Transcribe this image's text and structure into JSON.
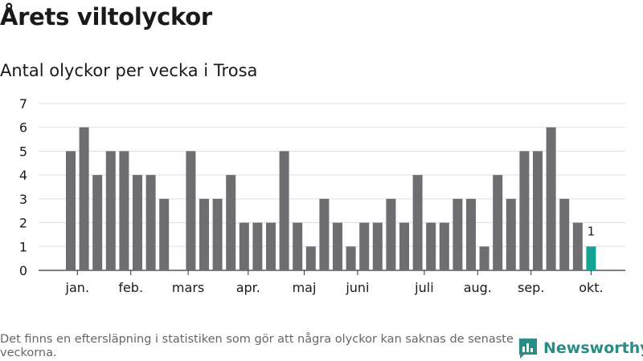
{
  "header": {
    "title": "Årets viltolyckor",
    "subtitle": "Antal olyckor per vecka i Trosa"
  },
  "footer": {
    "note": "Det finns en eftersläpning i statistiken som gör att några olyckor kan saknas de senaste veckorna.",
    "brand": "Newsworthy"
  },
  "colors": {
    "bar": "#6e6d72",
    "highlight": "#12a394",
    "grid": "#dddddd",
    "brand": "#2a8c85"
  },
  "icons": {
    "brand_logo": "bar-chart-icon"
  },
  "chart_data": {
    "type": "bar",
    "x_unit": "week",
    "x": [
      1,
      2,
      3,
      4,
      5,
      6,
      7,
      8,
      9,
      10,
      11,
      12,
      13,
      14,
      15,
      16,
      17,
      18,
      19,
      20,
      21,
      22,
      23,
      24,
      25,
      26,
      27,
      28,
      29,
      30,
      31,
      32,
      33,
      34,
      35,
      36,
      37,
      38,
      39,
      40
    ],
    "values": [
      5,
      6,
      4,
      5,
      5,
      4,
      4,
      3,
      0,
      5,
      3,
      3,
      4,
      2,
      2,
      2,
      5,
      2,
      1,
      3,
      2,
      1,
      2,
      2,
      3,
      2,
      4,
      2,
      2,
      3,
      3,
      1,
      4,
      3,
      5,
      5,
      6,
      3,
      2,
      1
    ],
    "ylim": [
      0,
      7
    ],
    "yticks": [
      0,
      1,
      2,
      3,
      4,
      5,
      6,
      7
    ],
    "xticks": [
      {
        "label": "jan.",
        "week": 1.5
      },
      {
        "label": "feb.",
        "week": 5.5
      },
      {
        "label": "mars",
        "week": 9.8
      },
      {
        "label": "apr.",
        "week": 14.3
      },
      {
        "label": "maj",
        "week": 18.5
      },
      {
        "label": "juni",
        "week": 22.5
      },
      {
        "label": "juli",
        "week": 27.5
      },
      {
        "label": "aug.",
        "week": 31.5
      },
      {
        "label": "sep.",
        "week": 35.5
      },
      {
        "label": "okt.",
        "week": 40.0
      }
    ],
    "highlight_index": 39,
    "highlight_label": "1",
    "grid": true,
    "legend": "none"
  }
}
